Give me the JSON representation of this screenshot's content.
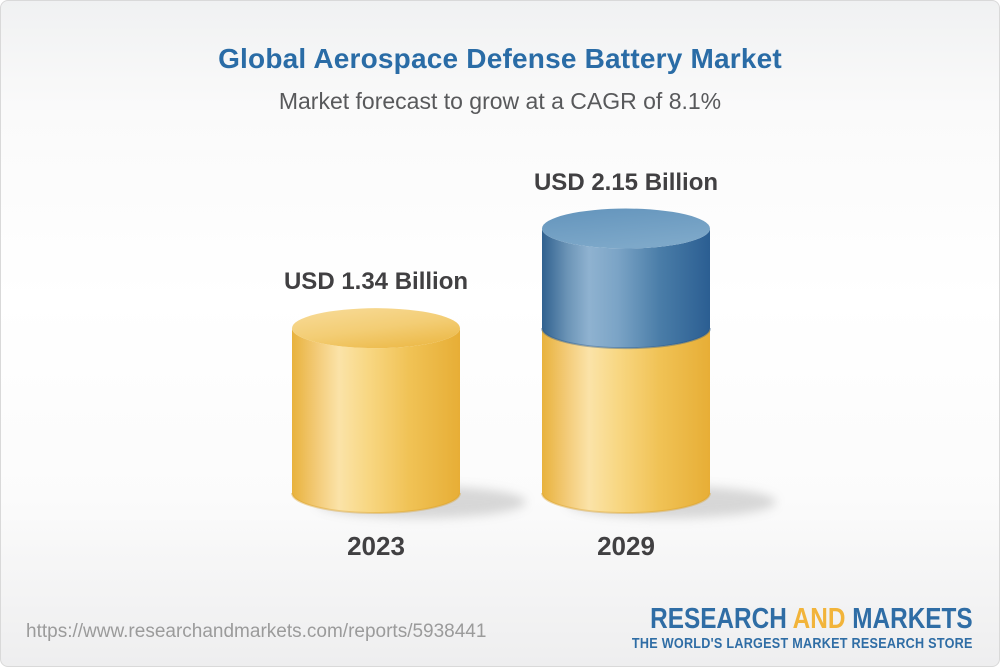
{
  "chart_data": {
    "type": "bar",
    "style": "3d-cylinder",
    "title": "Global Aerospace Defense Battery Market",
    "subtitle": "Market forecast to grow at a CAGR of 8.1%",
    "cagr_percent": 8.1,
    "unit": "USD Billion",
    "categories": [
      "2023",
      "2029"
    ],
    "values": [
      1.34,
      2.15
    ],
    "ylim": [
      0,
      2.4
    ],
    "grid": false,
    "legend": false,
    "bars": [
      {
        "category": "2023",
        "value": 1.34,
        "label": "USD 1.34 Billion",
        "segments": [
          {
            "name": "market-size-2023",
            "value": 1.34,
            "color_key": "gold"
          }
        ]
      },
      {
        "category": "2029",
        "value": 2.15,
        "label": "USD 2.15 Billion",
        "segments": [
          {
            "name": "base-2023-level",
            "value": 1.34,
            "color_key": "gold"
          },
          {
            "name": "growth-to-2029",
            "value": 0.81,
            "color_key": "blue"
          }
        ]
      }
    ]
  },
  "colors": {
    "title_blue": "#2a6ca6",
    "subtitle_gray": "#58595b",
    "label_dark": "#414042",
    "bar_gold": "#f2c45f",
    "bar_blue": "#4d80aa",
    "url_gray": "#9b9b9b",
    "logo_blue": "#2f6da5",
    "logo_gold": "#f2b43a",
    "card_border": "#d9d9d9"
  },
  "footer": {
    "url": "https://www.researchandmarkets.com/reports/5938441",
    "logo": {
      "word1": "RESEARCH",
      "word2": "AND",
      "word3": "MARKETS",
      "tagline": "THE WORLD'S LARGEST MARKET RESEARCH STORE"
    }
  }
}
